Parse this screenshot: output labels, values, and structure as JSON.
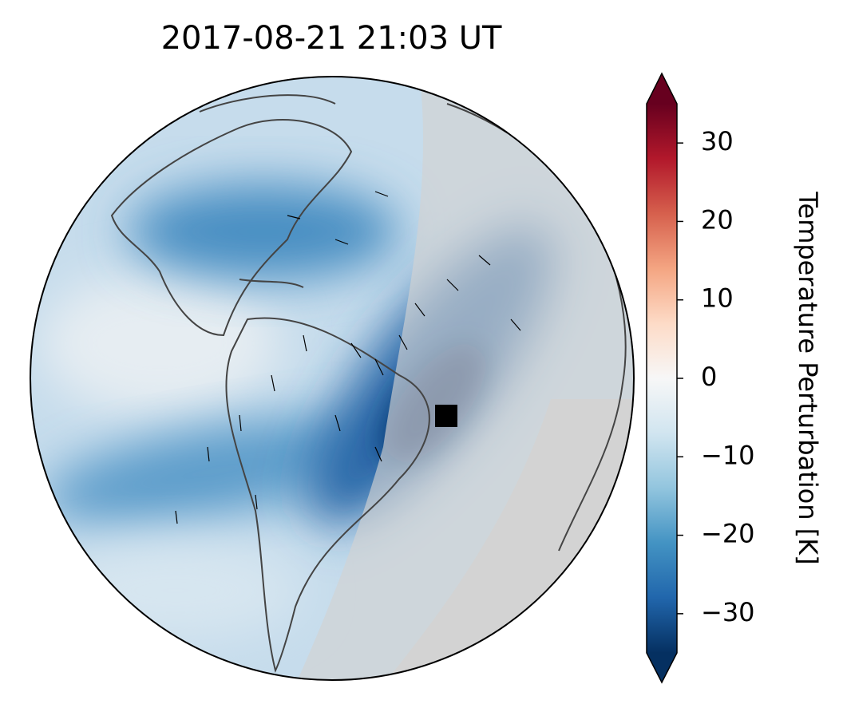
{
  "title": "2017-08-21  21:03 UT",
  "colorbar": {
    "label": "Temperature Perturbation [K]",
    "lim": [
      -35,
      35
    ],
    "ticks": [
      {
        "value": 30,
        "label": "30"
      },
      {
        "value": 20,
        "label": "20"
      },
      {
        "value": 10,
        "label": "10"
      },
      {
        "value": 0,
        "label": "0"
      },
      {
        "value": -10,
        "label": "−10"
      },
      {
        "value": -20,
        "label": "−20"
      },
      {
        "value": -30,
        "label": "−30"
      }
    ],
    "colors": [
      "#053061",
      "#2166ac",
      "#4393c3",
      "#92c5de",
      "#d1e5f0",
      "#f7f7f7",
      "#fddbc7",
      "#f4a582",
      "#d6604d",
      "#b2182b",
      "#67001f"
    ]
  }
}
